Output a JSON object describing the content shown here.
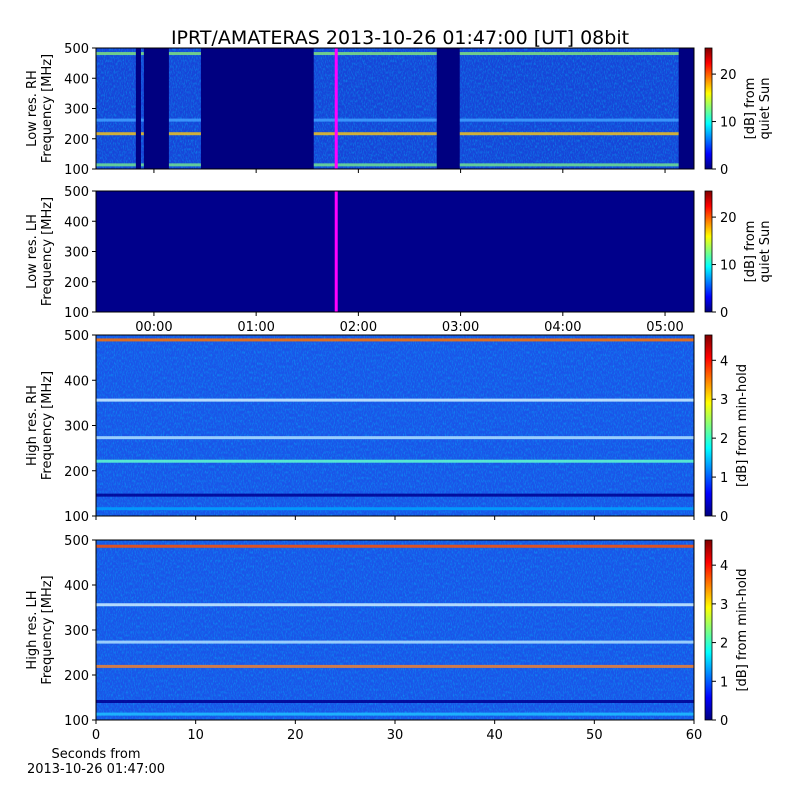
{
  "chart_data": [
    {
      "type": "spectrogram",
      "title": "IPRT/AMATERAS 2013-10-26 01:47:00 [UT]   08bit",
      "ylabel": [
        "Low res. RH",
        "Frequency [MHz]"
      ],
      "xlim": [
        -34,
        317
      ],
      "xticks": [
        0,
        60,
        120,
        180,
        240,
        300
      ],
      "ylim": [
        100,
        500
      ],
      "yticks": [
        100,
        200,
        300,
        400,
        500
      ],
      "background": "#1745d8",
      "bands": [
        {
          "freq": 480,
          "color": "#7fe07f"
        },
        {
          "freq": 215,
          "color": "#f0c020"
        },
        {
          "freq": 112,
          "color": "#70e090"
        },
        {
          "freq": 260,
          "color": "#40a0ff"
        }
      ],
      "gaps": [
        [
          -10.6,
          -7.6
        ],
        [
          -5.9,
          8.8
        ],
        [
          27.6,
          93.8
        ],
        [
          166,
          179.5
        ],
        [
          308,
          317
        ]
      ],
      "gap_color": "#000080",
      "marker": 107,
      "marker_color": "#ff00ff",
      "colorbar": {
        "lim": [
          0,
          25.5
        ],
        "ticks": [
          0,
          10,
          20
        ],
        "label": [
          "[dB] from",
          "quiet Sun"
        ]
      }
    },
    {
      "type": "spectrogram",
      "ylabel": [
        "Low res. LH",
        "Frequency [MHz]"
      ],
      "xlim": [
        -34,
        317
      ],
      "xticks": [
        {
          "value": 0,
          "label": "00:00"
        },
        {
          "value": 60,
          "label": "01:00"
        },
        {
          "value": 120,
          "label": "02:00"
        },
        {
          "value": 180,
          "label": "03:00"
        },
        {
          "value": 240,
          "label": "04:00"
        },
        {
          "value": 300,
          "label": "05:00"
        }
      ],
      "ylim": [
        100,
        500
      ],
      "yticks": [
        100,
        200,
        300,
        400,
        500
      ],
      "background": "#00008b",
      "marker": 107,
      "marker_color": "#ff00ff",
      "colorbar": {
        "lim": [
          0,
          25.5
        ],
        "ticks": [
          0,
          10,
          20
        ],
        "label": [
          "[dB] from",
          "quiet Sun"
        ]
      }
    },
    {
      "type": "spectrogram",
      "ylabel": [
        "High res. RH",
        "Frequency [MHz]"
      ],
      "xlim": [
        0,
        60
      ],
      "xticks": [
        0,
        10,
        20,
        30,
        40,
        50,
        60
      ],
      "ylim": [
        100,
        500
      ],
      "yticks": [
        100,
        200,
        300,
        400,
        500
      ],
      "background": "#1a55e8",
      "bands": [
        {
          "freq": 488,
          "color": "#ff7000"
        },
        {
          "freq": 355,
          "color": "#d0f0ff"
        },
        {
          "freq": 272,
          "color": "#b0e0ff"
        },
        {
          "freq": 220,
          "color": "#60ffd0"
        },
        {
          "freq": 145,
          "color": "#000090"
        },
        {
          "freq": 115,
          "color": "#00a0ff"
        }
      ],
      "colorbar": {
        "lim": [
          0,
          4.65
        ],
        "ticks": [
          0,
          1,
          2,
          3,
          4
        ],
        "label": [
          "[dB] from min-hold"
        ]
      }
    },
    {
      "type": "spectrogram",
      "ylabel": [
        "High res. LH",
        "Frequency [MHz]"
      ],
      "xlim": [
        0,
        60
      ],
      "xticks": [
        0,
        10,
        20,
        30,
        40,
        50,
        60
      ],
      "xlabel": [
        "Seconds from",
        "2013-10-26 01:47:00"
      ],
      "ylim": [
        100,
        500
      ],
      "yticks": [
        100,
        200,
        300,
        400,
        500
      ],
      "background": "#1a55e8",
      "bands": [
        {
          "freq": 485,
          "color": "#ff5000"
        },
        {
          "freq": 355,
          "color": "#d0f0ff"
        },
        {
          "freq": 272,
          "color": "#b0e0ff"
        },
        {
          "freq": 218,
          "color": "#f08030"
        },
        {
          "freq": 140,
          "color": "#000090"
        },
        {
          "freq": 112,
          "color": "#20c0ff"
        }
      ],
      "colorbar": {
        "lim": [
          0,
          4.65
        ],
        "ticks": [
          0,
          1,
          2,
          3,
          4
        ],
        "label": [
          "[dB] from min-hold"
        ]
      }
    }
  ]
}
